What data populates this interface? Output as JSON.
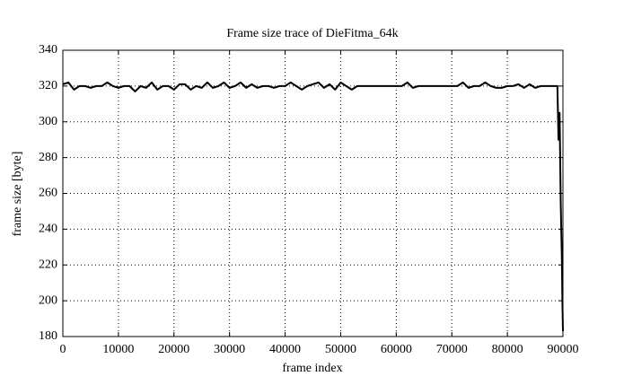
{
  "chart_data": {
    "type": "line",
    "title": "Frame size trace of DieFitma_64k",
    "xlabel": "frame index",
    "ylabel": "frame size [byte]",
    "x": [
      0,
      1000,
      2000,
      3000,
      4000,
      5000,
      6000,
      7000,
      8000,
      9000,
      10000,
      11000,
      12000,
      13000,
      14000,
      15000,
      16000,
      17000,
      18000,
      19000,
      20000,
      21000,
      22000,
      23000,
      24000,
      25000,
      26000,
      27000,
      28000,
      29000,
      30000,
      31000,
      32000,
      33000,
      34000,
      35000,
      36000,
      37000,
      38000,
      39000,
      40000,
      41000,
      42000,
      43000,
      44000,
      45000,
      46000,
      47000,
      48000,
      49000,
      50000,
      51000,
      52000,
      53000,
      54000,
      55000,
      56000,
      57000,
      58000,
      59000,
      60000,
      61000,
      62000,
      63000,
      64000,
      65000,
      66000,
      67000,
      68000,
      69000,
      70000,
      71000,
      72000,
      73000,
      74000,
      75000,
      76000,
      77000,
      78000,
      79000,
      80000,
      81000,
      82000,
      83000,
      84000,
      85000,
      86000,
      87000,
      88000,
      89000,
      89200,
      89400,
      89600,
      89800,
      89900,
      90000
    ],
    "series": [
      {
        "name": "frame size",
        "color": "#000000",
        "values": [
          321,
          322,
          318,
          320,
          320,
          319,
          320,
          320,
          322,
          320,
          319,
          320,
          320,
          317,
          320,
          319,
          322,
          318,
          320,
          320,
          318,
          321,
          321,
          318,
          320,
          319,
          322,
          319,
          320,
          322,
          319,
          320,
          322,
          319,
          321,
          319,
          320,
          320,
          319,
          320,
          320,
          322,
          320,
          318,
          320,
          321,
          322,
          319,
          321,
          318,
          322,
          320,
          318,
          320,
          320,
          320,
          320,
          320,
          320,
          320,
          320,
          320,
          322,
          319,
          320,
          320,
          320,
          320,
          320,
          320,
          320,
          320,
          322,
          319,
          320,
          320,
          322,
          320,
          319,
          319,
          320,
          320,
          321,
          319,
          321,
          319,
          320,
          320,
          320,
          320,
          290,
          305,
          255,
          225,
          200,
          183
        ]
      }
    ],
    "xlim": [
      0,
      90000
    ],
    "ylim": [
      180,
      340
    ],
    "xticks": [
      0,
      10000,
      20000,
      30000,
      40000,
      50000,
      60000,
      70000,
      80000,
      90000
    ],
    "yticks": [
      180,
      200,
      220,
      240,
      260,
      280,
      300,
      320,
      340
    ],
    "grid": true
  }
}
